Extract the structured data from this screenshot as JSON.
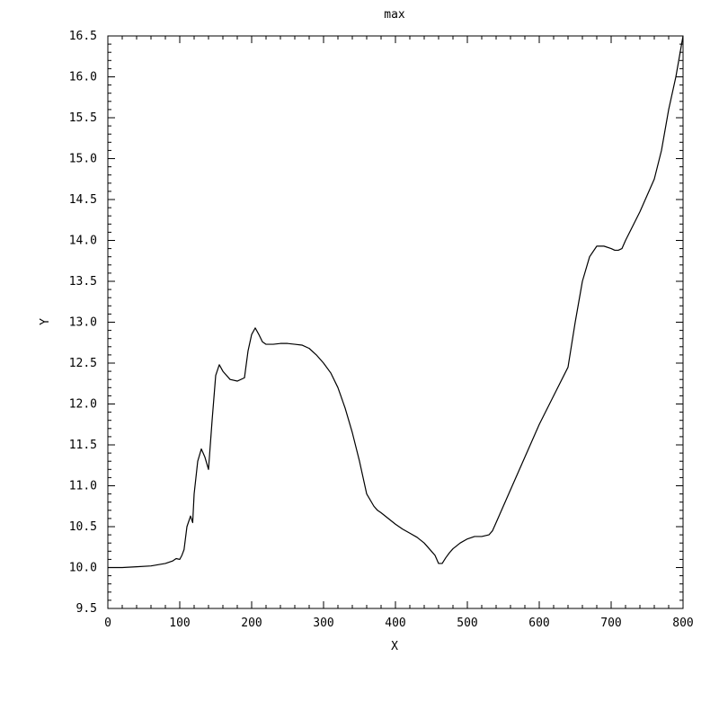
{
  "chart_data": {
    "type": "line",
    "title": "max",
    "xlabel": "X",
    "ylabel": "Y",
    "xlim": [
      0,
      800
    ],
    "ylim": [
      9.5,
      16.5
    ],
    "xticks": [
      0,
      100,
      200,
      300,
      400,
      500,
      600,
      700,
      800
    ],
    "yticks": [
      9.5,
      10.0,
      10.5,
      11.0,
      11.5,
      12.0,
      12.5,
      13.0,
      13.5,
      14.0,
      14.5,
      15.0,
      15.5,
      16.0,
      16.5
    ],
    "xtick_labels": [
      "0",
      "100",
      "200",
      "300",
      "400",
      "500",
      "600",
      "700",
      "800"
    ],
    "ytick_labels": [
      "9.5",
      "10.0",
      "10.5",
      "11.0",
      "11.5",
      "12.0",
      "12.5",
      "13.0",
      "13.5",
      "14.0",
      "14.5",
      "15.0",
      "15.5",
      "16.0",
      "16.5"
    ],
    "grid": false,
    "series": [
      {
        "color": "#000000",
        "x": [
          0,
          20,
          40,
          60,
          80,
          90,
          95,
          100,
          103,
          106,
          110,
          115,
          118,
          120,
          125,
          130,
          135,
          140,
          145,
          150,
          155,
          160,
          170,
          180,
          190,
          195,
          200,
          205,
          210,
          215,
          220,
          230,
          240,
          250,
          260,
          270,
          280,
          290,
          300,
          310,
          320,
          330,
          340,
          350,
          360,
          370,
          375,
          380,
          390,
          400,
          410,
          420,
          430,
          440,
          450,
          455,
          460,
          465,
          470,
          475,
          480,
          490,
          500,
          510,
          520,
          530,
          535,
          540,
          560,
          580,
          600,
          620,
          640,
          650,
          660,
          670,
          680,
          690,
          700,
          705,
          710,
          715,
          720,
          740,
          760,
          770,
          780,
          790,
          800
        ],
        "y": [
          10.0,
          10.0,
          10.01,
          10.02,
          10.05,
          10.08,
          10.11,
          10.1,
          10.15,
          10.22,
          10.5,
          10.63,
          10.55,
          10.9,
          11.3,
          11.45,
          11.35,
          11.2,
          11.8,
          12.35,
          12.48,
          12.4,
          12.3,
          12.28,
          12.32,
          12.65,
          12.85,
          12.93,
          12.85,
          12.76,
          12.73,
          12.73,
          12.74,
          12.74,
          12.73,
          12.72,
          12.68,
          12.6,
          12.5,
          12.38,
          12.2,
          11.95,
          11.65,
          11.3,
          10.9,
          10.75,
          10.7,
          10.67,
          10.6,
          10.53,
          10.47,
          10.42,
          10.37,
          10.3,
          10.2,
          10.15,
          10.05,
          10.05,
          10.12,
          10.18,
          10.23,
          10.3,
          10.35,
          10.38,
          10.38,
          10.4,
          10.45,
          10.55,
          10.95,
          11.35,
          11.75,
          12.1,
          12.45,
          13.0,
          13.5,
          13.8,
          13.93,
          13.93,
          13.9,
          13.88,
          13.88,
          13.9,
          14.0,
          14.35,
          14.75,
          15.1,
          15.6,
          16.0,
          16.5
        ]
      }
    ]
  }
}
